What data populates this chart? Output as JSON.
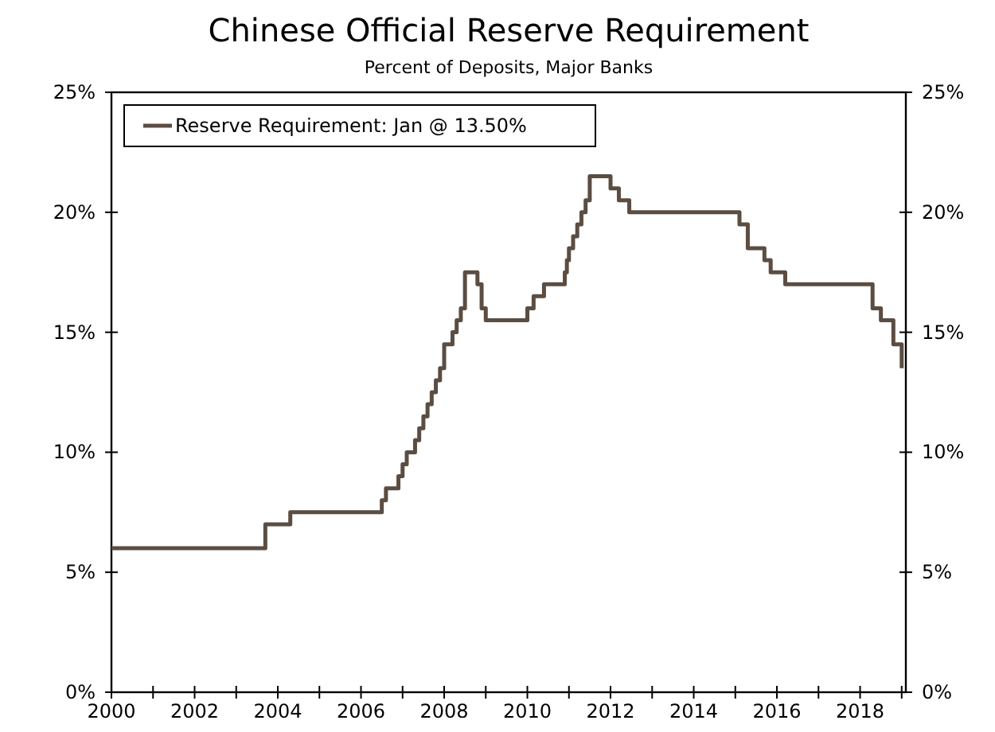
{
  "chart_data": {
    "type": "step",
    "title": "Chinese Official Reserve Requirement",
    "subtitle": "Percent of Deposits, Major Banks",
    "xlim": [
      2000,
      2019.1
    ],
    "xticks": [
      2000,
      {
        "value": 2001,
        "label": null
      },
      2002,
      {
        "value": 2003,
        "label": null
      },
      2004,
      {
        "value": 2005,
        "label": null
      },
      2006,
      {
        "value": 2007,
        "label": null
      },
      2008,
      {
        "value": 2009,
        "label": null
      },
      2010,
      {
        "value": 2011,
        "label": null
      },
      2012,
      {
        "value": 2013,
        "label": null
      },
      2014,
      {
        "value": 2015,
        "label": null
      },
      2016,
      {
        "value": 2017,
        "label": null
      },
      2018,
      {
        "value": 2019,
        "label": null
      }
    ],
    "ylim": [
      0,
      25
    ],
    "yticks": [
      {
        "value": 0,
        "label": "0%"
      },
      {
        "value": 5,
        "label": "5%"
      },
      {
        "value": 10,
        "label": "10%"
      },
      {
        "value": 15,
        "label": "15%"
      },
      {
        "value": 20,
        "label": "20%"
      },
      {
        "value": 25,
        "label": "25%"
      }
    ],
    "y2lim": [
      0,
      25
    ],
    "y2ticks": [
      {
        "value": 0,
        "label": "0%"
      },
      {
        "value": 5,
        "label": "5%"
      },
      {
        "value": 10,
        "label": "10%"
      },
      {
        "value": 15,
        "label": "15%"
      },
      {
        "value": 20,
        "label": "20%"
      },
      {
        "value": 25,
        "label": "25%"
      }
    ],
    "grid": false,
    "legend": "top left",
    "line_style": "solid",
    "marker": "none",
    "series": [
      {
        "name": "Reserve Requirement: Jan @ 13.50%",
        "color": "#5b4d42",
        "x": [
          2000,
          2003.7,
          2004.3,
          2006.5,
          2006.6,
          2006.9,
          2007.0,
          2007.1,
          2007.3,
          2007.4,
          2007.5,
          2007.6,
          2007.7,
          2007.8,
          2007.9,
          2008.0,
          2008.2,
          2008.3,
          2008.4,
          2008.5,
          2008.8,
          2008.9,
          2009.0,
          2010.0,
          2010.15,
          2010.4,
          2010.9,
          2010.95,
          2011.0,
          2011.1,
          2011.2,
          2011.3,
          2011.4,
          2011.5,
          2012.0,
          2012.2,
          2012.45,
          2015.1,
          2015.3,
          2015.7,
          2015.85,
          2016.2,
          2018.3,
          2018.5,
          2018.8,
          2019.0
        ],
        "values": [
          6,
          7,
          7.5,
          8,
          8.5,
          9,
          9.5,
          10,
          10.5,
          11,
          11.5,
          12,
          12.5,
          13,
          13.5,
          14.5,
          15,
          15.5,
          16,
          17.5,
          17,
          16,
          15.5,
          16,
          16.5,
          17,
          17.5,
          18,
          18.5,
          19,
          19.5,
          20,
          20.5,
          21.5,
          21,
          20.5,
          20,
          19.5,
          18.5,
          18,
          17.5,
          17,
          16,
          15.5,
          14.5,
          13.5
        ]
      }
    ]
  }
}
